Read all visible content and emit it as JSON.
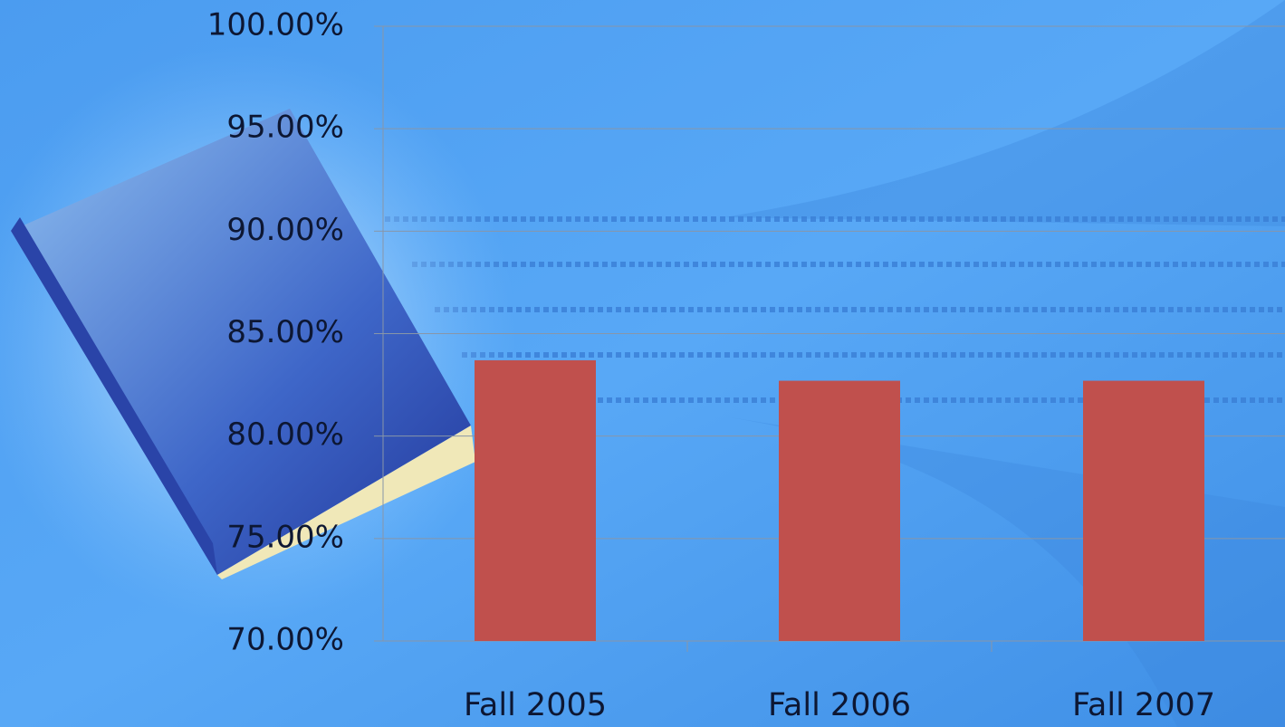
{
  "chart_data": {
    "type": "bar",
    "categories": [
      "Fall 2005",
      "Fall 2006",
      "Fall 2007"
    ],
    "values": [
      83.7,
      82.7,
      82.7
    ],
    "color": "#c0504d",
    "ylim": [
      70,
      100
    ],
    "yticks": [
      {
        "value": 70,
        "label": "70.00%"
      },
      {
        "value": 75,
        "label": "75.00%"
      },
      {
        "value": 80,
        "label": "80.00%"
      },
      {
        "value": 85,
        "label": "85.00%"
      },
      {
        "value": 90,
        "label": "90.00%"
      },
      {
        "value": 95,
        "label": "95.00%"
      },
      {
        "value": 100,
        "label": "100.00%"
      }
    ],
    "grid": true
  }
}
